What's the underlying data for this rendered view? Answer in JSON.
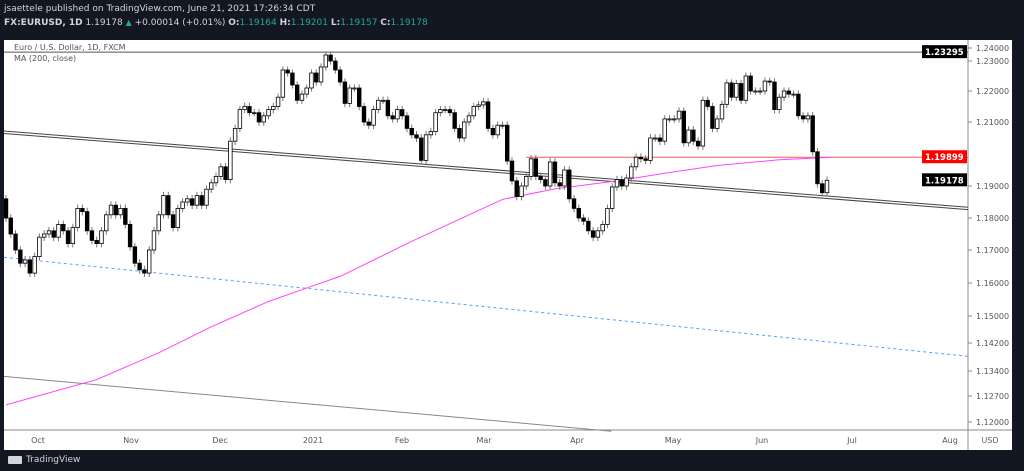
{
  "header": {
    "published": "jsaettele published on TradingView.com, June 21, 2021 17:26:34 CDT",
    "symbol": "FX:EURUSD, 1D",
    "last": "1.19178",
    "change": "+0.00014 (+0.01%)",
    "open_label": "O:",
    "open": "1.19164",
    "high_label": "H:",
    "high": "1.19201",
    "low_label": "L:",
    "low": "1.19157",
    "close_label": "C:",
    "close": "1.19178"
  },
  "legend": {
    "title": "Euro / U.S. Dollar, 1D, FXCM",
    "indicator": "MA (200, close)"
  },
  "footer": {
    "brand": "TradingView"
  },
  "colors": {
    "background": "#131722",
    "ma": "#ff44ff",
    "resistance": "#ff3333",
    "dashed": "#4a90ff",
    "up_text": "#26a69a"
  },
  "chart_data": {
    "type": "candlestick",
    "currency": "USD",
    "yticks": [
      "1.24000",
      "1.23000",
      "1.22000",
      "1.21000",
      "1.19000",
      "1.18000",
      "1.17000",
      "1.16000",
      "1.15000",
      "1.14200",
      "1.13400",
      "1.12700",
      "1.12000"
    ],
    "price_labels": [
      {
        "value": "1.23295",
        "color": "#000000"
      },
      {
        "value": "1.19899",
        "color": "#ff0000"
      },
      {
        "value": "1.19178",
        "color": "#000000"
      }
    ],
    "xticks": [
      "Oct",
      "Nov",
      "Dec",
      "2021",
      "Feb",
      "Mar",
      "Apr",
      "May",
      "Jun",
      "Jul",
      "Aug"
    ],
    "first_open": 1.186,
    "closes": [
      1.18,
      1.175,
      1.17,
      1.166,
      1.167,
      1.163,
      1.168,
      1.174,
      1.175,
      1.176,
      1.174,
      1.178,
      1.176,
      1.172,
      1.177,
      1.183,
      1.182,
      1.176,
      1.173,
      1.172,
      1.176,
      1.181,
      1.184,
      1.181,
      1.183,
      1.178,
      1.171,
      1.166,
      1.164,
      1.163,
      1.17,
      1.176,
      1.181,
      1.187,
      1.181,
      1.177,
      1.183,
      1.185,
      1.186,
      1.184,
      1.187,
      1.184,
      1.189,
      1.191,
      1.193,
      1.196,
      1.192,
      1.204,
      1.208,
      1.214,
      1.215,
      1.213,
      1.213,
      1.21,
      1.212,
      1.214,
      1.215,
      1.218,
      1.227,
      1.226,
      1.222,
      1.217,
      1.219,
      1.221,
      1.226,
      1.223,
      1.228,
      1.232,
      1.23,
      1.227,
      1.223,
      1.216,
      1.221,
      1.221,
      1.215,
      1.21,
      1.209,
      1.214,
      1.217,
      1.217,
      1.212,
      1.211,
      1.214,
      1.212,
      1.208,
      1.206,
      1.205,
      1.198,
      1.206,
      1.207,
      1.213,
      1.214,
      1.214,
      1.213,
      1.208,
      1.205,
      1.21,
      1.212,
      1.215,
      1.2155,
      1.2165,
      1.208,
      1.206,
      1.209,
      1.209,
      1.1978,
      1.1916,
      1.1867,
      1.19,
      1.193,
      1.1985,
      1.193,
      1.192,
      1.19,
      1.1975,
      1.191,
      1.19,
      1.195,
      1.186,
      1.183,
      1.18,
      1.179,
      1.176,
      1.174,
      1.176,
      1.178,
      1.183,
      1.1897,
      1.192,
      1.19,
      1.1925,
      1.196,
      1.199,
      1.1985,
      1.198,
      1.205,
      1.205,
      1.204,
      1.211,
      1.211,
      1.211,
      1.2135,
      1.2035,
      1.2075,
      1.204,
      1.2025,
      1.217,
      1.215,
      1.208,
      1.211,
      1.2157,
      1.2227,
      1.218,
      1.2225,
      1.217,
      1.225,
      1.22,
      1.22,
      1.22,
      1.2233,
      1.223,
      1.214,
      1.218,
      1.22,
      1.219,
      1.219,
      1.212,
      1.211,
      1.212,
      1.2007,
      1.1907,
      1.1879,
      1.19178
    ],
    "ma200": [
      [
        0,
        1.1246
      ],
      [
        19,
        1.1316
      ],
      [
        32,
        1.1392
      ],
      [
        43,
        1.1468
      ],
      [
        55,
        1.1544
      ],
      [
        64,
        1.159
      ],
      [
        70,
        1.162
      ],
      [
        85,
        1.1727
      ],
      [
        96,
        1.1803
      ],
      [
        104,
        1.1858
      ],
      [
        115,
        1.1891
      ],
      [
        128,
        1.1916
      ],
      [
        138,
        1.194
      ],
      [
        149,
        1.1964
      ],
      [
        162,
        1.1982
      ],
      [
        173,
        1.199
      ]
    ],
    "lines": [
      {
        "kind": "horizontal",
        "value": 1.23295,
        "color": "#555555"
      },
      {
        "kind": "horizontal",
        "value": 1.19899,
        "from_index": 109,
        "color": "#ff5555"
      },
      {
        "kind": "trend-double",
        "start": 1.2068,
        "end": 1.183,
        "color": "#444444"
      },
      {
        "kind": "trend-dashed",
        "start": 1.1678,
        "end": 1.1382,
        "color": "#5b9cff"
      },
      {
        "kind": "trend-thin",
        "start": 1.1325,
        "end": 1.1175,
        "end_fraction": 0.63,
        "color": "#888888"
      }
    ]
  }
}
